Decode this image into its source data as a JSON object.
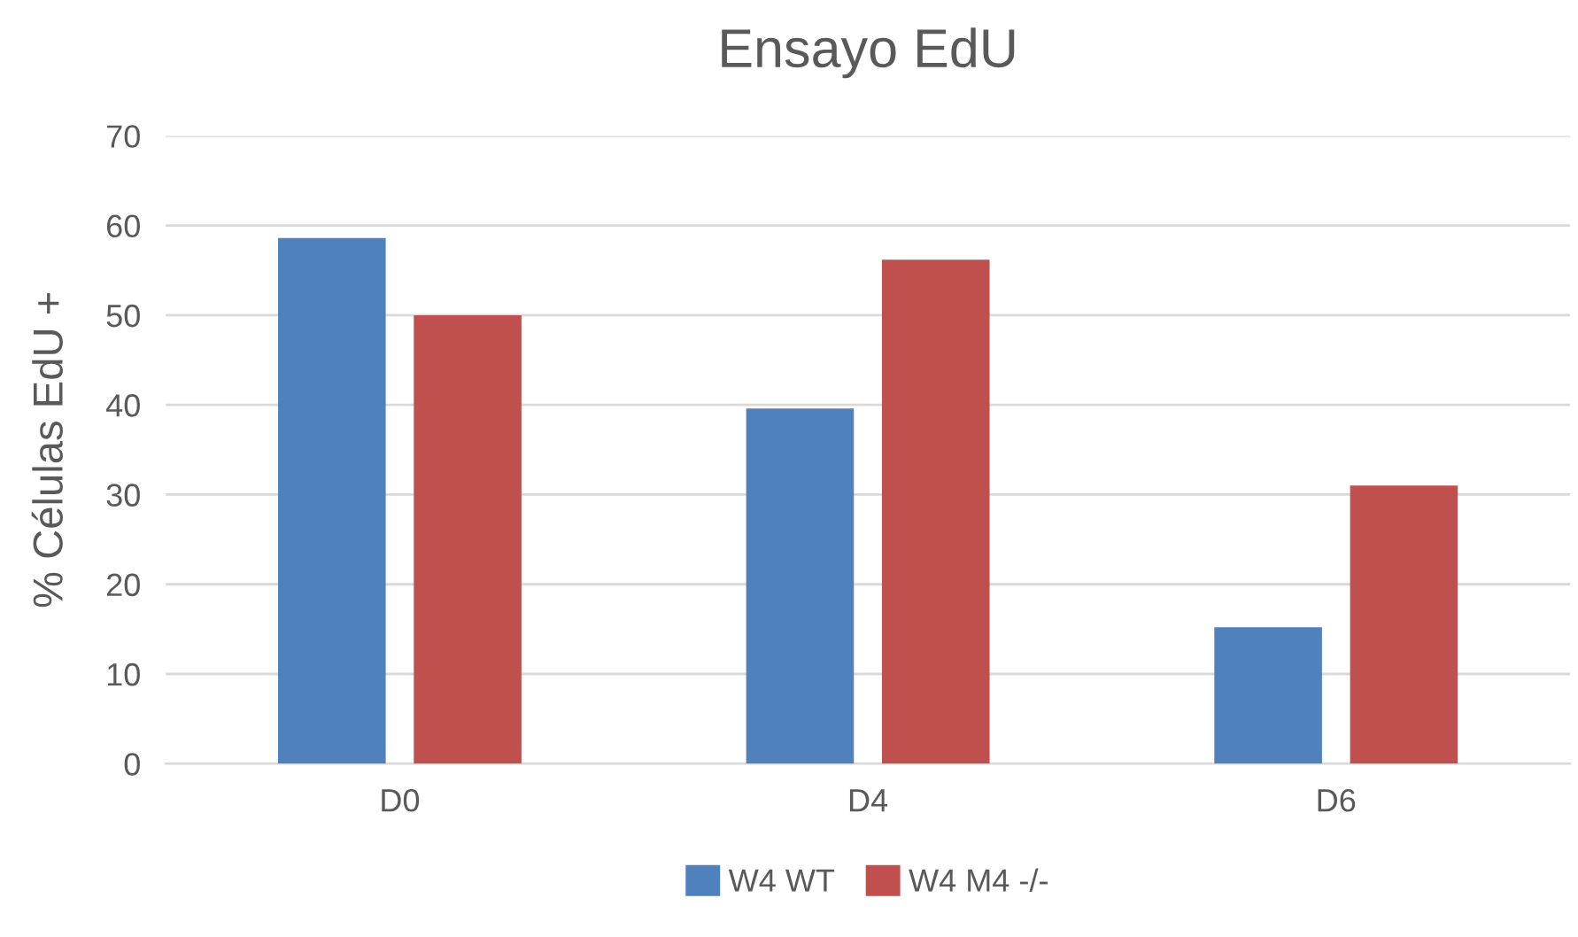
{
  "chart_data": {
    "type": "bar",
    "title": "Ensayo EdU",
    "ylabel": "% Células EdU +",
    "categories": [
      "D0",
      "D4",
      "D6"
    ],
    "series": [
      {
        "name": "W4 WT",
        "color": "#4f81bd",
        "values": [
          58.6,
          39.6,
          15.2
        ]
      },
      {
        "name": "W4 M4 -/-",
        "color": "#c0504d",
        "values": [
          50,
          56.2,
          31
        ]
      }
    ],
    "ylim": [
      0,
      70
    ],
    "yticks": [
      0,
      10,
      20,
      30,
      40,
      50,
      60,
      70
    ],
    "grid": "y",
    "legend": "bottom"
  }
}
